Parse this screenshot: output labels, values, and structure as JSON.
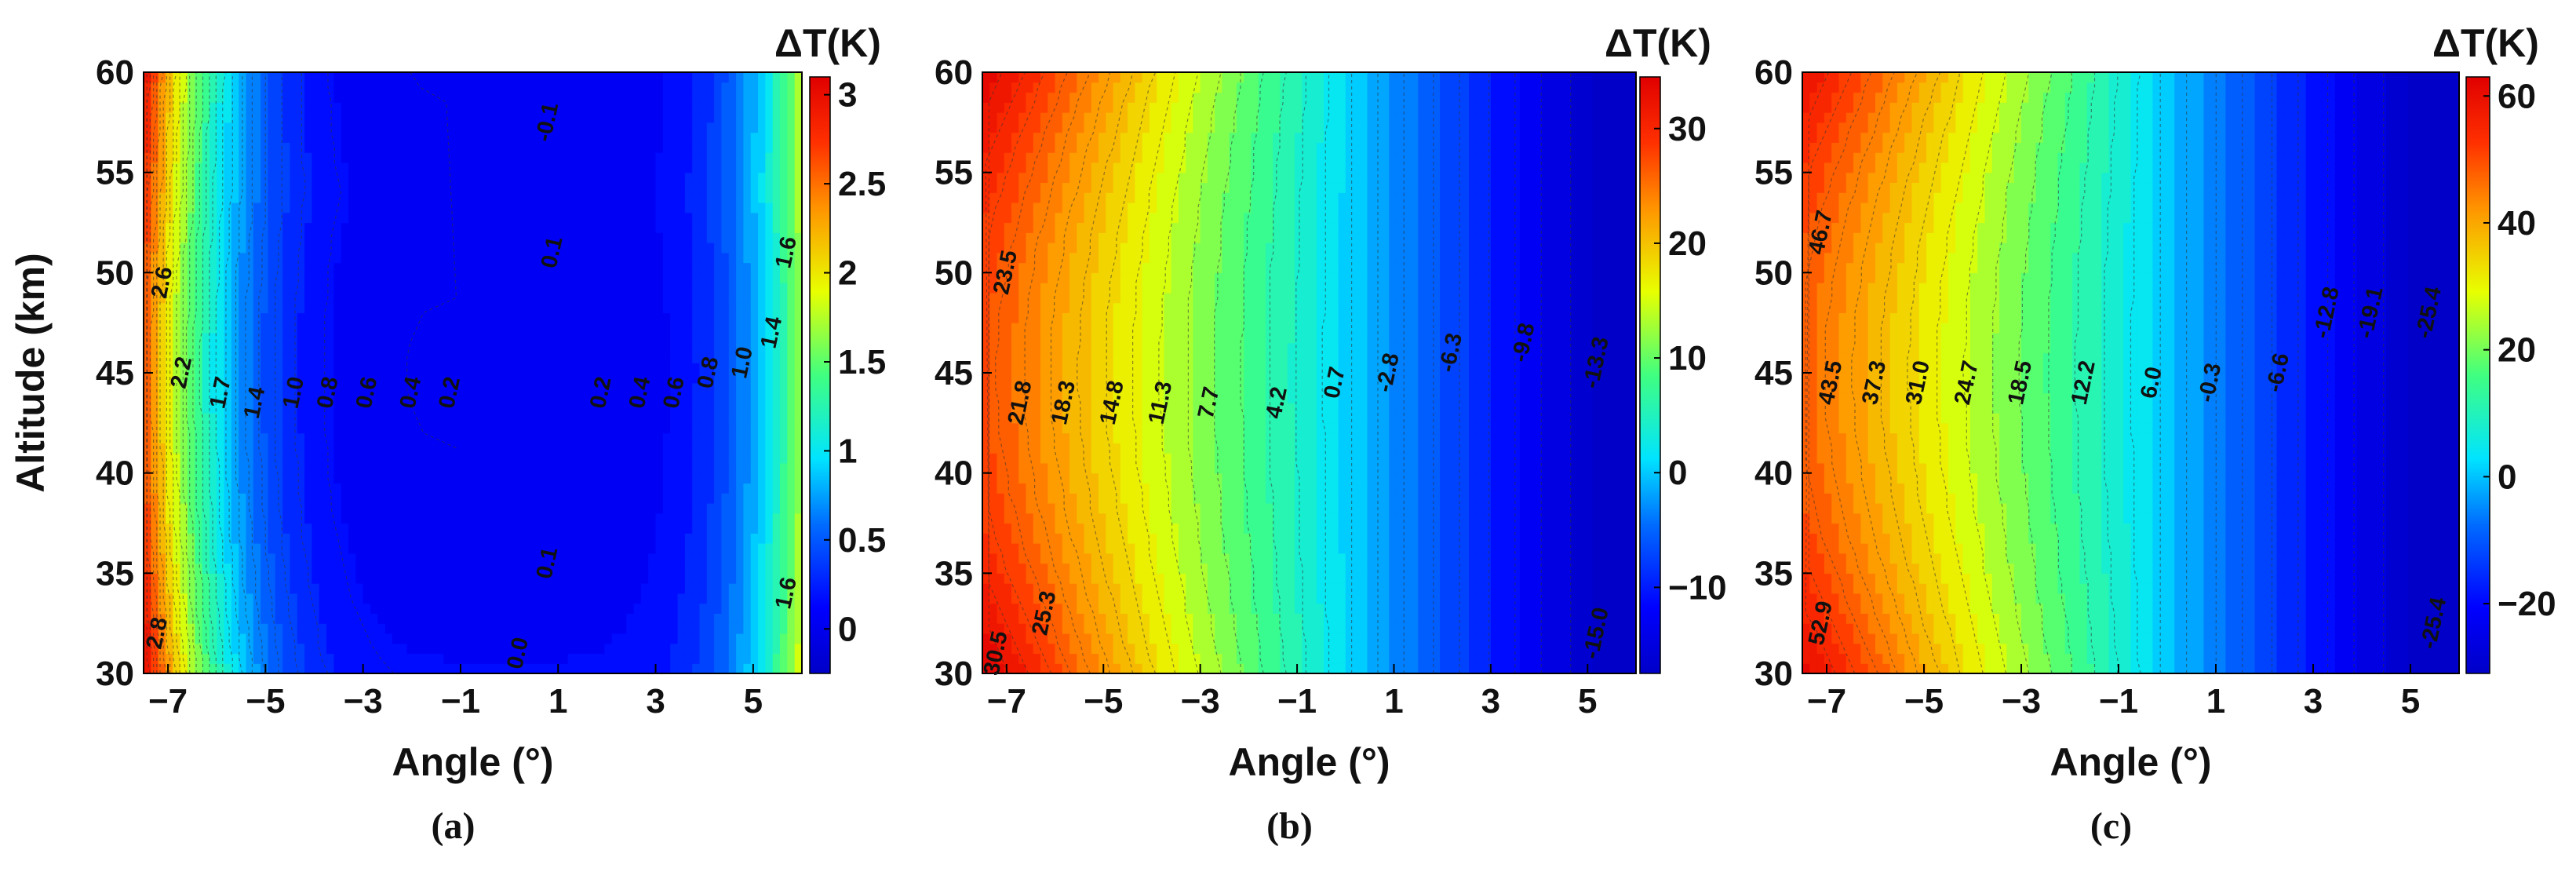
{
  "chart_data": [
    {
      "type": "heatmap",
      "panel_label": "(a)",
      "xlabel": "Angle (°)",
      "ylabel": "Altitude (km)",
      "colorbar_title": "ΔT(K)",
      "xlim": [
        -7.5,
        6
      ],
      "ylim": [
        30,
        60
      ],
      "xticks": [
        "-7",
        "-5",
        "-3",
        "-1",
        "1",
        "3",
        "5"
      ],
      "yticks": [
        "30",
        "35",
        "40",
        "45",
        "50",
        "55",
        "60"
      ],
      "clim": [
        -0.25,
        3.1
      ],
      "colorbar_ticks": [
        "0",
        "0.5",
        "1",
        "1.5",
        "2",
        "2.5",
        "3"
      ],
      "grid": false,
      "contour_labels": [
        {
          "text": "2.6",
          "x": -7.1,
          "y": 49.5
        },
        {
          "text": "2.2",
          "x": -6.7,
          "y": 45.0
        },
        {
          "text": "1.7",
          "x": -5.9,
          "y": 44.0
        },
        {
          "text": "1.4",
          "x": -5.2,
          "y": 43.5
        },
        {
          "text": "1.0",
          "x": -4.4,
          "y": 44.0
        },
        {
          "text": "0.8",
          "x": -3.7,
          "y": 44.0
        },
        {
          "text": "0.6",
          "x": -2.9,
          "y": 44.0
        },
        {
          "text": "0.4",
          "x": -2.0,
          "y": 44.0
        },
        {
          "text": "0.2",
          "x": -1.2,
          "y": 44.0
        },
        {
          "text": "0.2",
          "x": 1.9,
          "y": 44.0
        },
        {
          "text": "0.4",
          "x": 2.7,
          "y": 44.0
        },
        {
          "text": "0.6",
          "x": 3.4,
          "y": 44.0
        },
        {
          "text": "0.8",
          "x": 4.1,
          "y": 45.0
        },
        {
          "text": "1.0",
          "x": 4.8,
          "y": 45.5
        },
        {
          "text": "1.4",
          "x": 5.4,
          "y": 47.0
        },
        {
          "text": "1.6",
          "x": 5.7,
          "y": 51.0
        },
        {
          "text": "-0.1",
          "x": 0.8,
          "y": 57.5
        },
        {
          "text": "0.1",
          "x": 0.9,
          "y": 51.0
        },
        {
          "text": "0.1",
          "x": 0.8,
          "y": 35.5
        },
        {
          "text": "0.0",
          "x": 0.2,
          "y": 31.0
        },
        {
          "text": "1.6",
          "x": 5.7,
          "y": 34.0
        },
        {
          "text": "2.8",
          "x": -7.2,
          "y": 32.0
        }
      ]
    },
    {
      "type": "heatmap",
      "panel_label": "(b)",
      "xlabel": "Angle (°)",
      "ylabel": "",
      "colorbar_title": "ΔT(K)",
      "xlim": [
        -7.5,
        6
      ],
      "ylim": [
        30,
        60
      ],
      "xticks": [
        "-7",
        "-5",
        "-3",
        "-1",
        "1",
        "3",
        "5"
      ],
      "yticks": [
        "30",
        "35",
        "40",
        "45",
        "50",
        "55",
        "60"
      ],
      "clim": [
        -17.5,
        34.5
      ],
      "colorbar_ticks": [
        "−10",
        "0",
        "10",
        "20",
        "30"
      ],
      "grid": false,
      "contour_labels": [
        {
          "text": "23.5",
          "x": -7.0,
          "y": 50.0
        },
        {
          "text": "21.8",
          "x": -6.7,
          "y": 43.5
        },
        {
          "text": "18.3",
          "x": -5.8,
          "y": 43.5
        },
        {
          "text": "14.8",
          "x": -4.8,
          "y": 43.5
        },
        {
          "text": "11.3",
          "x": -3.8,
          "y": 43.5
        },
        {
          "text": "7.7",
          "x": -2.8,
          "y": 43.5
        },
        {
          "text": "4.2",
          "x": -1.4,
          "y": 43.5
        },
        {
          "text": "0.7",
          "x": -0.2,
          "y": 44.5
        },
        {
          "text": "-2.8",
          "x": 0.9,
          "y": 45.0
        },
        {
          "text": "-6.3",
          "x": 2.2,
          "y": 46.0
        },
        {
          "text": "-9.8",
          "x": 3.7,
          "y": 46.5
        },
        {
          "text": "-13.3",
          "x": 5.2,
          "y": 45.5
        },
        {
          "text": "25.3",
          "x": -6.2,
          "y": 33.0
        },
        {
          "text": "30.5",
          "x": -7.2,
          "y": 31.0
        },
        {
          "text": "-15.0",
          "x": 5.2,
          "y": 32.0
        }
      ]
    },
    {
      "type": "heatmap",
      "panel_label": "(c)",
      "xlabel": "Angle (°)",
      "ylabel": "",
      "colorbar_title": "ΔT(K)",
      "xlim": [
        -7.5,
        6
      ],
      "ylim": [
        30,
        60
      ],
      "xticks": [
        "-7",
        "-5",
        "-3",
        "-1",
        "1",
        "3",
        "5"
      ],
      "yticks": [
        "30",
        "35",
        "40",
        "45",
        "50",
        "55",
        "60"
      ],
      "clim": [
        -31,
        63
      ],
      "colorbar_ticks": [
        "−20",
        "0",
        "20",
        "40",
        "60"
      ],
      "grid": false,
      "contour_labels": [
        {
          "text": "46.7",
          "x": -7.1,
          "y": 52.0
        },
        {
          "text": "43.5",
          "x": -6.9,
          "y": 44.5
        },
        {
          "text": "37.3",
          "x": -6.0,
          "y": 44.5
        },
        {
          "text": "31.0",
          "x": -5.1,
          "y": 44.5
        },
        {
          "text": "24.7",
          "x": -4.1,
          "y": 44.5
        },
        {
          "text": "18.5",
          "x": -3.0,
          "y": 44.5
        },
        {
          "text": "12.2",
          "x": -1.7,
          "y": 44.5
        },
        {
          "text": "6.0",
          "x": -0.3,
          "y": 44.5
        },
        {
          "text": "-0.3",
          "x": 0.9,
          "y": 44.5
        },
        {
          "text": "-6.6",
          "x": 2.3,
          "y": 45.0
        },
        {
          "text": "-12.8",
          "x": 3.3,
          "y": 48.0
        },
        {
          "text": "-19.1",
          "x": 4.2,
          "y": 48.0
        },
        {
          "text": "-25.4",
          "x": 5.4,
          "y": 48.0
        },
        {
          "text": "52.9",
          "x": -7.1,
          "y": 32.5
        },
        {
          "text": "-25.4",
          "x": 5.5,
          "y": 32.5
        }
      ]
    }
  ]
}
